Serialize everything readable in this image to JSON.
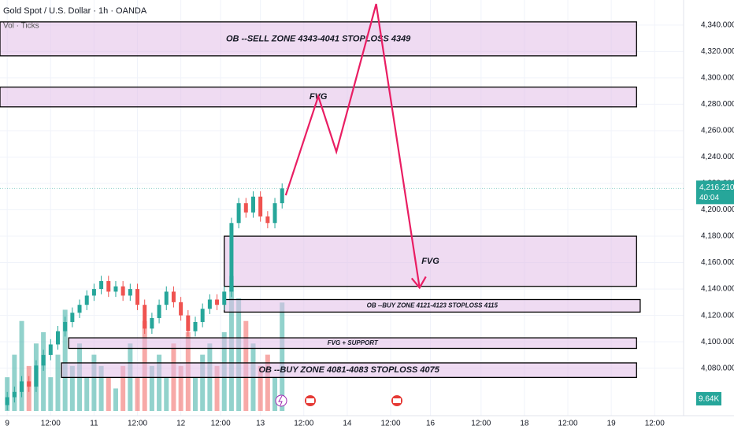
{
  "chart_data": {
    "type": "candlestick",
    "title": "Gold Spot / U.S. Dollar · 1h · OANDA",
    "subtitle": "Vol · Ticks",
    "xlim": [
      -2,
      187
    ],
    "xticks": [
      {
        "value": 0,
        "label": "9"
      },
      {
        "value": 12,
        "label": "12:00"
      },
      {
        "value": 24,
        "label": "11"
      },
      {
        "value": 36,
        "label": "12:00"
      },
      {
        "value": 48,
        "label": "12"
      },
      {
        "value": 59,
        "label": "12:00"
      },
      {
        "value": 70,
        "label": "13"
      },
      {
        "value": 82,
        "label": "12:00"
      },
      {
        "value": 94,
        "label": "14"
      },
      {
        "value": 106,
        "label": "12:00"
      },
      {
        "value": 117,
        "label": "16"
      },
      {
        "value": 131,
        "label": "12:00"
      },
      {
        "value": 143,
        "label": "18"
      },
      {
        "value": 155,
        "label": "12:00"
      },
      {
        "value": 167,
        "label": "19"
      },
      {
        "value": 179,
        "label": "12:00"
      }
    ],
    "ylim": [
      4044,
      4359
    ],
    "yticks": [
      {
        "value": 4080,
        "label": "4,080.000"
      },
      {
        "value": 4100,
        "label": "4,100.000"
      },
      {
        "value": 4120,
        "label": "4,120.000"
      },
      {
        "value": 4140,
        "label": "4,140.000"
      },
      {
        "value": 4160,
        "label": "4,160.000"
      },
      {
        "value": 4180,
        "label": "4,180.000"
      },
      {
        "value": 4200,
        "label": "4,200.000"
      },
      {
        "value": 4220,
        "label": "4,220.000"
      },
      {
        "value": 4240,
        "label": "4,240.000"
      },
      {
        "value": 4260,
        "label": "4,260.000"
      },
      {
        "value": 4280,
        "label": "4,280.000"
      },
      {
        "value": 4300,
        "label": "4,300.000"
      },
      {
        "value": 4320,
        "label": "4,320.000"
      },
      {
        "value": 4340,
        "label": "4,340.000"
      }
    ],
    "grid": true,
    "up_color": "#26a69a",
    "down_color": "#ef5350",
    "x": [
      0,
      2,
      4,
      6,
      8,
      10,
      12,
      14,
      16,
      18,
      20,
      22,
      24,
      26,
      28,
      30,
      32,
      34,
      36,
      38,
      40,
      42,
      44,
      46,
      48,
      50,
      52,
      54,
      56,
      58,
      60,
      62,
      64,
      66,
      68,
      70,
      72,
      74,
      76
    ],
    "open": [
      4052,
      4058,
      4062,
      4070,
      4066,
      4082,
      4090,
      4098,
      4108,
      4115,
      4122,
      4128,
      4135,
      4140,
      4146,
      4138,
      4142,
      4135,
      4140,
      4128,
      4110,
      4118,
      4128,
      4138,
      4130,
      4120,
      4108,
      4115,
      4125,
      4132,
      4128,
      4138,
      4190,
      4205,
      4198,
      4210,
      4195,
      4190,
      4205
    ],
    "high": [
      4062,
      4066,
      4074,
      4074,
      4086,
      4094,
      4102,
      4112,
      4119,
      4126,
      4132,
      4139,
      4144,
      4150,
      4150,
      4146,
      4146,
      4144,
      4144,
      4132,
      4122,
      4132,
      4142,
      4142,
      4134,
      4124,
      4119,
      4129,
      4136,
      4136,
      4142,
      4194,
      4209,
      4209,
      4214,
      4214,
      4199,
      4209,
      4220
    ],
    "low": [
      4048,
      4054,
      4058,
      4062,
      4062,
      4078,
      4086,
      4094,
      4104,
      4111,
      4118,
      4124,
      4131,
      4136,
      4134,
      4134,
      4131,
      4131,
      4124,
      4106,
      4106,
      4114,
      4124,
      4126,
      4116,
      4104,
      4104,
      4111,
      4121,
      4124,
      4124,
      4134,
      4186,
      4194,
      4194,
      4191,
      4186,
      4186,
      4201
    ],
    "close": [
      4058,
      4062,
      4070,
      4066,
      4082,
      4090,
      4098,
      4108,
      4115,
      4122,
      4128,
      4135,
      4140,
      4146,
      4138,
      4142,
      4135,
      4140,
      4128,
      4110,
      4118,
      4128,
      4138,
      4130,
      4120,
      4108,
      4115,
      4125,
      4132,
      4128,
      4138,
      4190,
      4205,
      4198,
      4210,
      4195,
      4190,
      4205,
      4216.21
    ],
    "volume": [
      3,
      5,
      8,
      4,
      6,
      7,
      3,
      5,
      9,
      4,
      6,
      3,
      5,
      4,
      3,
      2,
      4,
      6,
      3,
      8,
      4,
      5,
      3,
      6,
      4,
      7,
      3,
      5,
      6,
      4,
      7,
      12,
      10,
      8,
      6,
      4,
      5,
      3,
      9.64
    ],
    "volume_max": 14,
    "volume_last_label": "9.64K",
    "last_price": 4216.21,
    "last_price_label": "4,216.210",
    "countdown": "40:04",
    "zones": [
      {
        "label": "OB --SELL ZONE 4343-4041 STOPLOSS 4349",
        "x": [
          -2,
          174
        ],
        "y": [
          4342.4,
          4316.7
        ]
      },
      {
        "label": "FVG",
        "x": [
          -2,
          174
        ],
        "y": [
          4293,
          4278
        ]
      },
      {
        "label": "FVG",
        "x": [
          60,
          174
        ],
        "y": [
          4180,
          4142
        ]
      },
      {
        "label": "OB --BUY ZONE 4121-4123 STOPLOSS 4115",
        "x": [
          60,
          175
        ],
        "y": [
          4132,
          4122.5
        ]
      },
      {
        "label": "FVG + SUPPORT",
        "x": [
          17,
          174
        ],
        "y": [
          4103,
          4095
        ]
      },
      {
        "label": "OB --BUY ZONE 4081-4083 STOPLOSS 4075",
        "x": [
          15,
          174
        ],
        "y": [
          4084,
          4073
        ]
      }
    ],
    "projection": {
      "color": "#e91e63",
      "x": [
        77,
        86,
        91,
        102,
        114
      ],
      "y": [
        4211,
        4286,
        4244,
        4356,
        4141
      ]
    }
  }
}
